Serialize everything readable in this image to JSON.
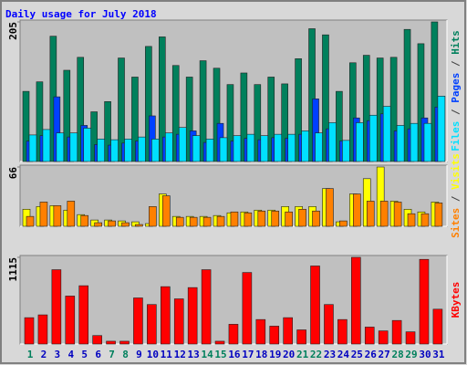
{
  "title": "Daily usage for July 2018",
  "chart_data": [
    {
      "type": "bar",
      "ylim": [
        0,
        205
      ],
      "yticks": [
        205
      ],
      "legend_separator": " / ",
      "series": [
        {
          "name": "Hits",
          "color": "#00805c",
          "values": [
            103,
            117,
            184,
            134,
            153,
            73,
            88,
            152,
            124,
            169,
            183,
            141,
            124,
            148,
            137,
            113,
            130,
            113,
            124,
            114,
            151,
            195,
            186,
            103,
            145,
            156,
            152,
            153,
            194,
            173,
            205
          ]
        },
        {
          "name": "Pages",
          "color": "#0040ff",
          "values": [
            30,
            38,
            95,
            36,
            53,
            25,
            24,
            27,
            30,
            67,
            36,
            40,
            45,
            28,
            56,
            30,
            34,
            32,
            35,
            34,
            40,
            92,
            48,
            30,
            64,
            60,
            70,
            45,
            48,
            64,
            80
          ]
        },
        {
          "name": "Files",
          "color": "#00e0ff",
          "values": [
            39,
            47,
            42,
            42,
            49,
            33,
            32,
            33,
            36,
            33,
            42,
            50,
            38,
            33,
            35,
            38,
            40,
            38,
            40,
            40,
            45,
            42,
            57,
            31,
            57,
            68,
            81,
            53,
            56,
            56,
            96
          ]
        }
      ]
    },
    {
      "type": "bar",
      "ylim": [
        0,
        66
      ],
      "yticks": [
        66
      ],
      "legend_separator": " / ",
      "series": [
        {
          "name": "Visits",
          "color": "#ffff00",
          "values": [
            19,
            22,
            23,
            18,
            13,
            7,
            7,
            6,
            5,
            3,
            36,
            11,
            11,
            11,
            12,
            15,
            16,
            18,
            18,
            22,
            22,
            22,
            42,
            5,
            36,
            53,
            66,
            28,
            19,
            16,
            27
          ]
        },
        {
          "name": "Sites",
          "color": "#ff8000",
          "values": [
            11,
            27,
            23,
            28,
            12,
            4,
            6,
            4,
            2,
            22,
            34,
            10,
            10,
            10,
            11,
            16,
            15,
            17,
            17,
            16,
            19,
            17,
            42,
            6,
            36,
            28,
            28,
            27,
            14,
            14,
            26
          ]
        }
      ]
    },
    {
      "type": "bar",
      "ylim": [
        0,
        1115
      ],
      "yticks": [
        1115
      ],
      "legend_separator": " / ",
      "categories": [
        "1",
        "2",
        "3",
        "4",
        "5",
        "6",
        "7",
        "8",
        "9",
        "10",
        "11",
        "12",
        "13",
        "14",
        "15",
        "16",
        "17",
        "18",
        "19",
        "20",
        "21",
        "22",
        "23",
        "24",
        "25",
        "26",
        "27",
        "28",
        "29",
        "30",
        "31"
      ],
      "category_colors": [
        "#00805c",
        "#0000c0",
        "#0000c0",
        "#0000c0",
        "#0000c0",
        "#0000c0",
        "#00805c",
        "#00805c",
        "#0000c0",
        "#0000c0",
        "#0000c0",
        "#0000c0",
        "#0000c0",
        "#00805c",
        "#00805c",
        "#0000c0",
        "#0000c0",
        "#0000c0",
        "#0000c0",
        "#0000c0",
        "#00805c",
        "#00805c",
        "#0000c0",
        "#0000c0",
        "#0000c0",
        "#0000c0",
        "#0000c0",
        "#00805c",
        "#00805c",
        "#0000c0",
        "#0000c0"
      ],
      "series": [
        {
          "name": "KBytes",
          "color": "#ff0000",
          "values": [
            339,
            375,
            956,
            617,
            750,
            109,
            36,
            36,
            593,
            508,
            738,
            581,
            726,
            956,
            36,
            254,
            920,
            315,
            230,
            339,
            182,
            1004,
            508,
            315,
            1115,
            218,
            169,
            303,
            157,
            1089,
            448
          ]
        }
      ]
    }
  ]
}
